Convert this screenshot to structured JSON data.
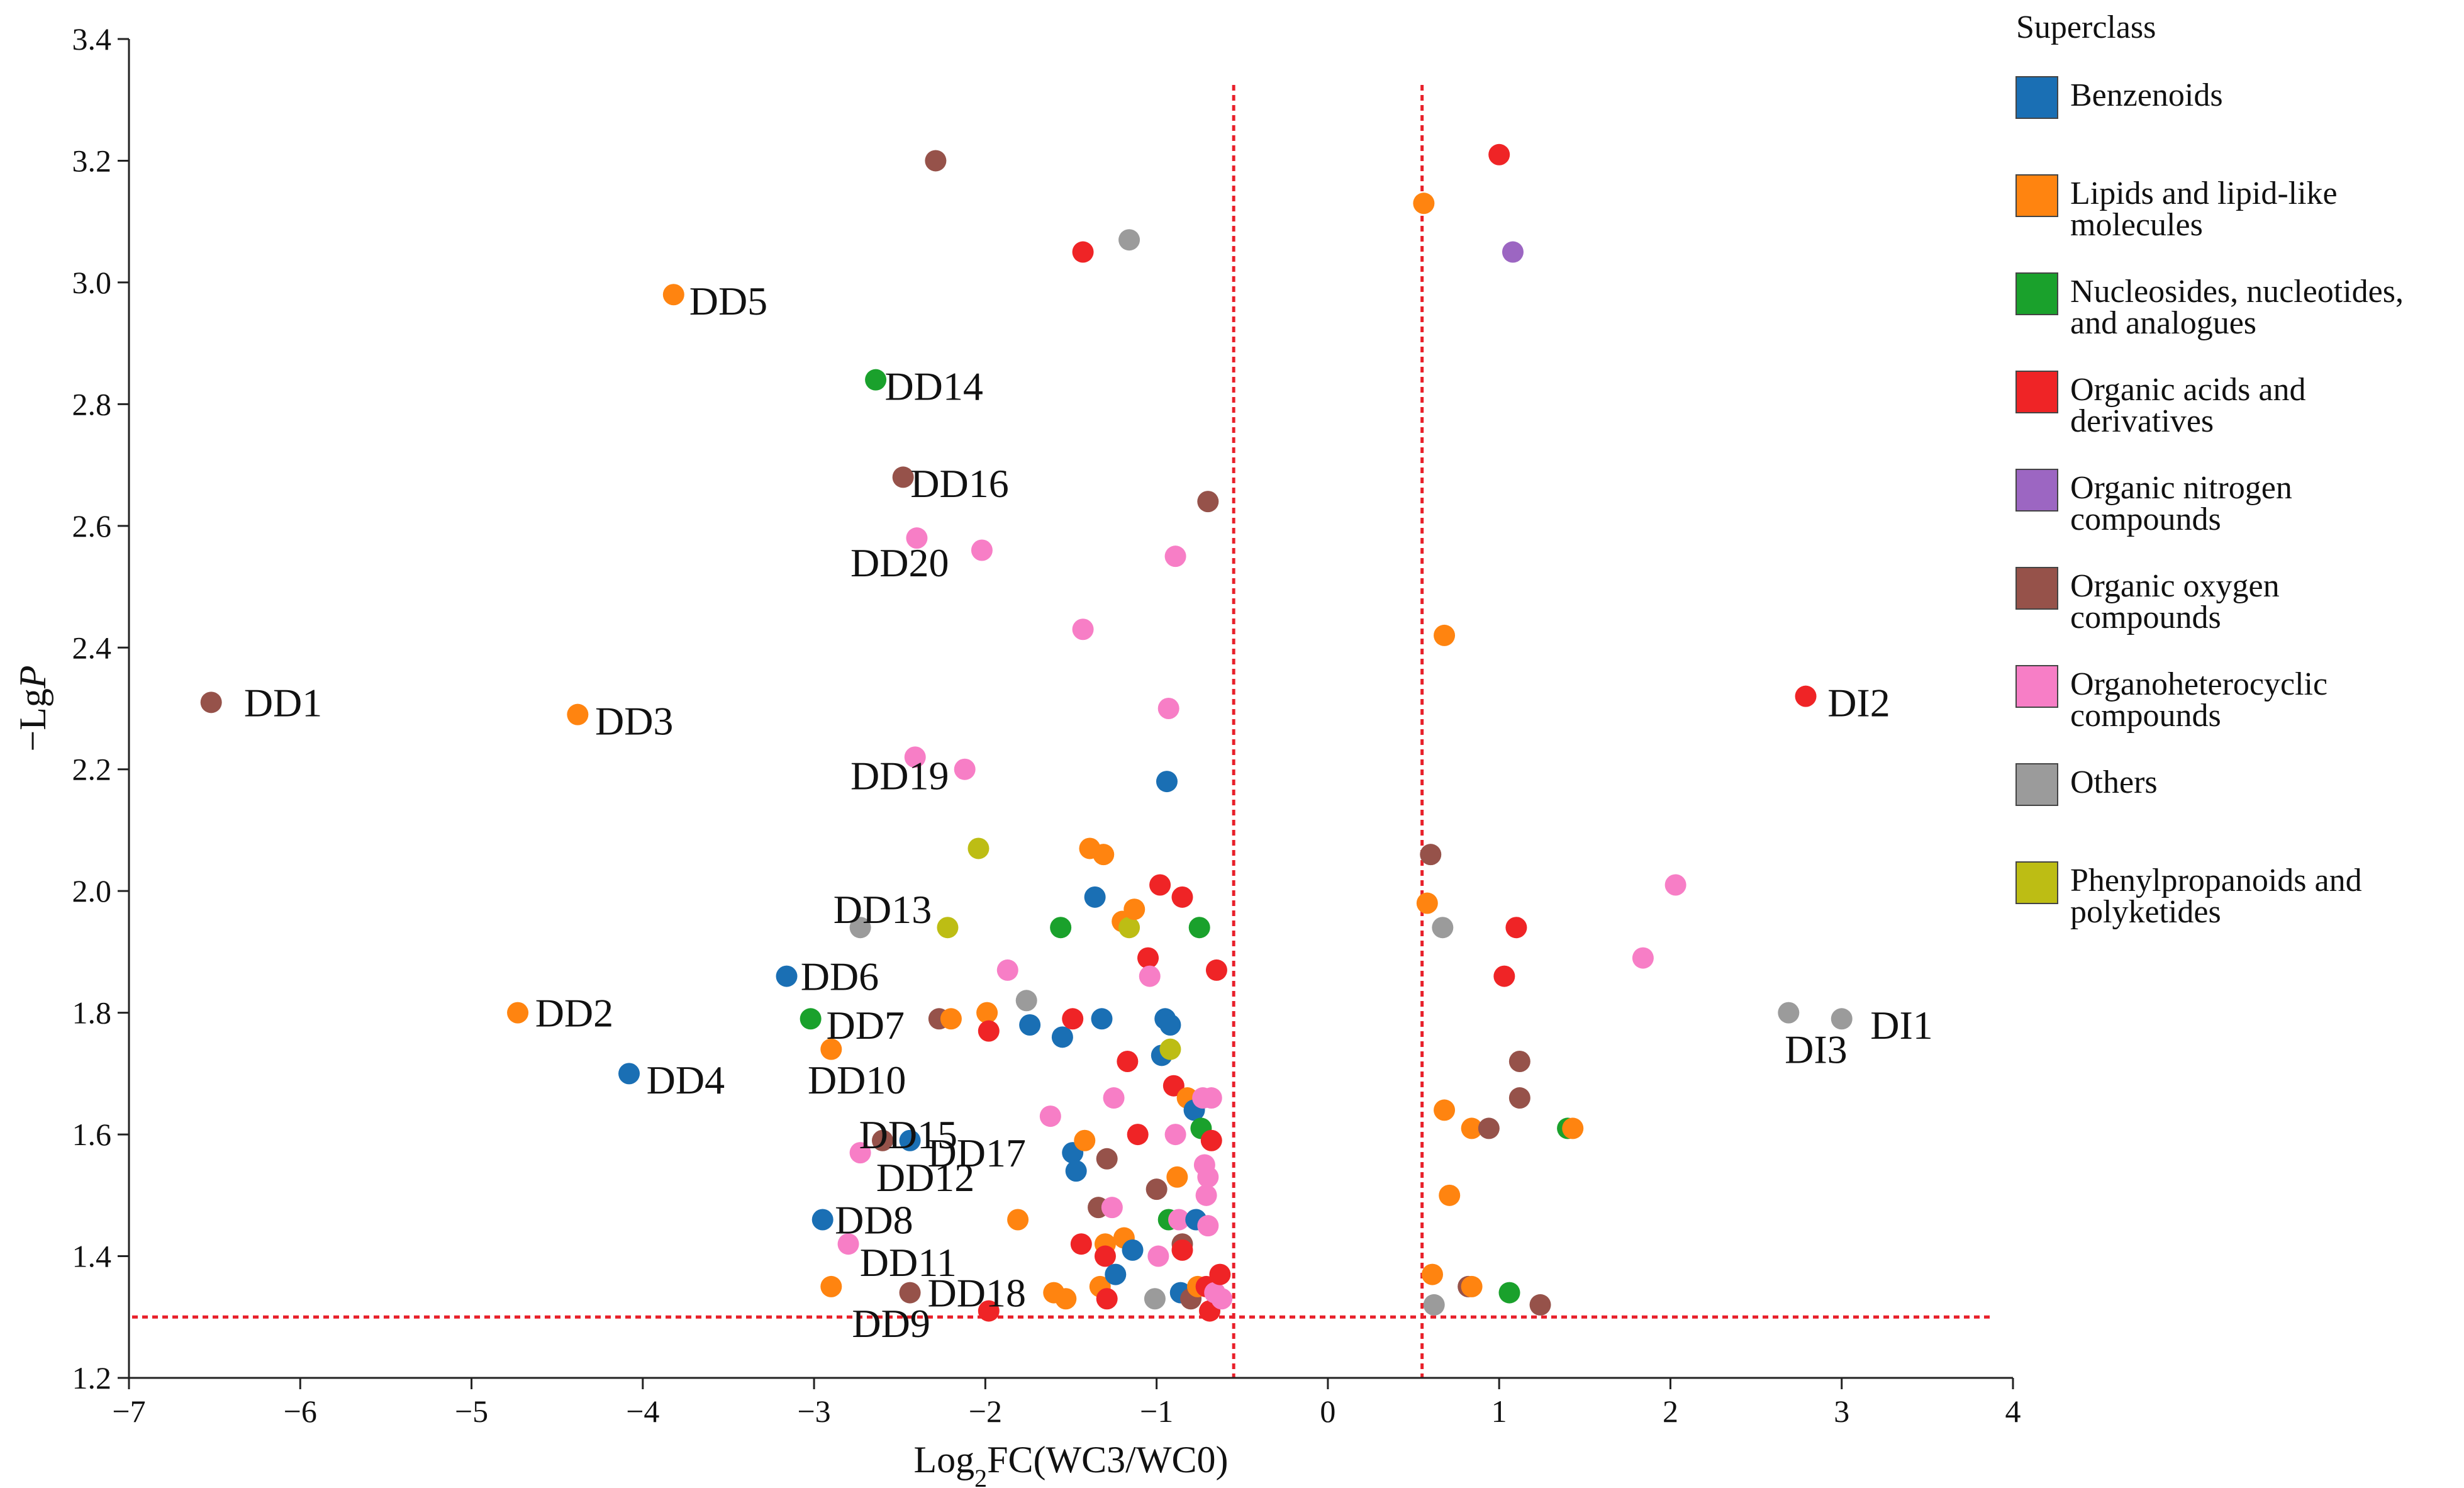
{
  "chart_data": {
    "type": "scatter",
    "title": "",
    "xlabel_prefix": "Log",
    "xlabel_sub": "2",
    "xlabel_suffix": "FC(WC3/WC0)",
    "ylabel_prefix": "−Lg",
    "ylabel_italic": "P",
    "xlim": [
      -7,
      4
    ],
    "ylim": [
      1.2,
      3.4
    ],
    "xticks": [
      -7,
      -6,
      -5,
      -4,
      -3,
      -2,
      -1,
      0,
      1,
      2,
      3,
      4
    ],
    "xtick_labels": [
      "−7",
      "−6",
      "−5",
      "−4",
      "−3",
      "−2",
      "−1",
      "0",
      "1",
      "2",
      "3",
      "4"
    ],
    "yticks": [
      1.2,
      1.4,
      1.6,
      1.8,
      2.0,
      2.2,
      2.4,
      2.6,
      2.8,
      3.0,
      3.2,
      3.4
    ],
    "ytick_labels": [
      "1.2",
      "1.4",
      "1.6",
      "1.8",
      "2.0",
      "2.2",
      "2.4",
      "2.6",
      "2.8",
      "3.0",
      "3.2",
      "3.4"
    ],
    "threshold_lines": {
      "x": [
        -0.55,
        0.55
      ],
      "y": 1.3,
      "color": "#e8202a"
    },
    "legend": {
      "title": "Superclass",
      "position": "right",
      "entries": [
        {
          "key": "benz",
          "lines": [
            "Benzenoids"
          ],
          "color": "#1a6fb4"
        },
        {
          "key": "lip",
          "lines": [
            "Lipids and lipid-like",
            "molecules"
          ],
          "color": "#ff8410"
        },
        {
          "key": "nuc",
          "lines": [
            "Nucleosides, nucleotides,",
            "and analogues"
          ],
          "color": "#1aa12c"
        },
        {
          "key": "oac",
          "lines": [
            "Organic acids and",
            "derivatives"
          ],
          "color": "#ef2426"
        },
        {
          "key": "onc",
          "lines": [
            "Organic nitrogen",
            "compounds"
          ],
          "color": "#9c66c2"
        },
        {
          "key": "ooc",
          "lines": [
            "Organic oxygen",
            "compounds"
          ],
          "color": "#96524a"
        },
        {
          "key": "ohc",
          "lines": [
            "Organoheterocyclic",
            "compounds"
          ],
          "color": "#f77ec6"
        },
        {
          "key": "oth",
          "lines": [
            "Others"
          ],
          "color": "#9b9b9b"
        },
        {
          "key": "php",
          "lines": [
            "Phenylpropanoids and",
            "polyketides"
          ],
          "color": "#bdbd14"
        }
      ]
    },
    "labels": [
      {
        "text": "DD1",
        "x": -6.1,
        "y": 2.31
      },
      {
        "text": "DD2",
        "x": -4.4,
        "y": 1.8
      },
      {
        "text": "DD3",
        "x": -4.05,
        "y": 2.28
      },
      {
        "text": "DD4",
        "x": -3.75,
        "y": 1.69
      },
      {
        "text": "DD5",
        "x": -3.5,
        "y": 2.97
      },
      {
        "text": "DD6",
        "x": -2.85,
        "y": 1.86
      },
      {
        "text": "DD7",
        "x": -2.7,
        "y": 1.78
      },
      {
        "text": "DD8",
        "x": -2.65,
        "y": 1.46
      },
      {
        "text": "DD9",
        "x": -2.55,
        "y": 1.29
      },
      {
        "text": "DD10",
        "x": -2.75,
        "y": 1.69
      },
      {
        "text": "DD11",
        "x": -2.45,
        "y": 1.39
      },
      {
        "text": "DD12",
        "x": -2.35,
        "y": 1.53
      },
      {
        "text": "DD13",
        "x": -2.6,
        "y": 1.97
      },
      {
        "text": "DD14",
        "x": -2.3,
        "y": 2.83
      },
      {
        "text": "DD15",
        "x": -2.45,
        "y": 1.6
      },
      {
        "text": "DD16",
        "x": -2.15,
        "y": 2.67
      },
      {
        "text": "DD17",
        "x": -2.05,
        "y": 1.57
      },
      {
        "text": "DD18",
        "x": -2.05,
        "y": 1.34
      },
      {
        "text": "DD19",
        "x": -2.5,
        "y": 2.19
      },
      {
        "text": "DD20",
        "x": -2.5,
        "y": 2.54
      },
      {
        "text": "DI1",
        "x": 3.35,
        "y": 1.78
      },
      {
        "text": "DI2",
        "x": 3.1,
        "y": 2.31
      },
      {
        "text": "DI3",
        "x": 2.85,
        "y": 1.74
      }
    ],
    "points": [
      {
        "x": -6.52,
        "y": 2.31,
        "c": "ooc"
      },
      {
        "x": -4.73,
        "y": 1.8,
        "c": "lip"
      },
      {
        "x": -4.38,
        "y": 2.29,
        "c": "lip"
      },
      {
        "x": -4.08,
        "y": 1.7,
        "c": "benz"
      },
      {
        "x": -3.82,
        "y": 2.98,
        "c": "lip"
      },
      {
        "x": -3.16,
        "y": 1.86,
        "c": "benz"
      },
      {
        "x": -3.02,
        "y": 1.79,
        "c": "nuc"
      },
      {
        "x": -2.95,
        "y": 1.46,
        "c": "benz"
      },
      {
        "x": -2.9,
        "y": 1.35,
        "c": "lip"
      },
      {
        "x": -2.9,
        "y": 1.74,
        "c": "lip"
      },
      {
        "x": -2.8,
        "y": 1.42,
        "c": "ohc"
      },
      {
        "x": -2.73,
        "y": 1.94,
        "c": "oth"
      },
      {
        "x": -2.73,
        "y": 1.57,
        "c": "ohc"
      },
      {
        "x": -2.64,
        "y": 2.84,
        "c": "nuc"
      },
      {
        "x": -2.6,
        "y": 1.59,
        "c": "ooc"
      },
      {
        "x": -2.48,
        "y": 2.68,
        "c": "ooc"
      },
      {
        "x": -2.44,
        "y": 1.59,
        "c": "benz"
      },
      {
        "x": -2.44,
        "y": 1.34,
        "c": "ooc"
      },
      {
        "x": -2.41,
        "y": 2.22,
        "c": "ohc"
      },
      {
        "x": -2.4,
        "y": 2.58,
        "c": "ohc"
      },
      {
        "x": -2.29,
        "y": 3.2,
        "c": "ooc"
      },
      {
        "x": -2.27,
        "y": 1.79,
        "c": "ooc"
      },
      {
        "x": -2.22,
        "y": 1.94,
        "c": "php"
      },
      {
        "x": -2.2,
        "y": 1.79,
        "c": "lip"
      },
      {
        "x": -2.12,
        "y": 2.2,
        "c": "ohc"
      },
      {
        "x": -2.04,
        "y": 2.07,
        "c": "php"
      },
      {
        "x": -2.02,
        "y": 2.56,
        "c": "ohc"
      },
      {
        "x": -1.99,
        "y": 1.8,
        "c": "lip"
      },
      {
        "x": -1.98,
        "y": 1.77,
        "c": "oac"
      },
      {
        "x": -1.98,
        "y": 1.31,
        "c": "oac"
      },
      {
        "x": -1.87,
        "y": 1.87,
        "c": "ohc"
      },
      {
        "x": -1.81,
        "y": 1.46,
        "c": "lip"
      },
      {
        "x": -1.76,
        "y": 1.82,
        "c": "oth"
      },
      {
        "x": -1.74,
        "y": 1.78,
        "c": "benz"
      },
      {
        "x": -1.62,
        "y": 1.63,
        "c": "ohc"
      },
      {
        "x": -1.6,
        "y": 1.34,
        "c": "lip"
      },
      {
        "x": -1.56,
        "y": 1.94,
        "c": "nuc"
      },
      {
        "x": -1.55,
        "y": 1.76,
        "c": "benz"
      },
      {
        "x": -1.53,
        "y": 1.33,
        "c": "lip"
      },
      {
        "x": -1.49,
        "y": 1.79,
        "c": "oac"
      },
      {
        "x": -1.49,
        "y": 1.57,
        "c": "benz"
      },
      {
        "x": -1.47,
        "y": 1.54,
        "c": "benz"
      },
      {
        "x": -1.44,
        "y": 1.42,
        "c": "oac"
      },
      {
        "x": -1.43,
        "y": 3.05,
        "c": "oac"
      },
      {
        "x": -1.43,
        "y": 2.43,
        "c": "ohc"
      },
      {
        "x": -1.42,
        "y": 1.59,
        "c": "lip"
      },
      {
        "x": -1.39,
        "y": 2.07,
        "c": "lip"
      },
      {
        "x": -1.36,
        "y": 1.99,
        "c": "benz"
      },
      {
        "x": -1.34,
        "y": 1.48,
        "c": "ooc"
      },
      {
        "x": -1.33,
        "y": 1.35,
        "c": "lip"
      },
      {
        "x": -1.32,
        "y": 1.79,
        "c": "benz"
      },
      {
        "x": -1.31,
        "y": 2.06,
        "c": "lip"
      },
      {
        "x": -1.3,
        "y": 1.42,
        "c": "lip"
      },
      {
        "x": -1.3,
        "y": 1.4,
        "c": "oac"
      },
      {
        "x": -1.29,
        "y": 1.56,
        "c": "ooc"
      },
      {
        "x": -1.29,
        "y": 1.33,
        "c": "oac"
      },
      {
        "x": -1.26,
        "y": 1.48,
        "c": "ohc"
      },
      {
        "x": -1.25,
        "y": 1.66,
        "c": "ohc"
      },
      {
        "x": -1.24,
        "y": 1.37,
        "c": "benz"
      },
      {
        "x": -1.2,
        "y": 1.95,
        "c": "lip"
      },
      {
        "x": -1.19,
        "y": 1.43,
        "c": "lip"
      },
      {
        "x": -1.17,
        "y": 1.72,
        "c": "oac"
      },
      {
        "x": -1.16,
        "y": 1.94,
        "c": "php"
      },
      {
        "x": -1.16,
        "y": 3.07,
        "c": "oth"
      },
      {
        "x": -1.14,
        "y": 1.41,
        "c": "benz"
      },
      {
        "x": -1.13,
        "y": 1.97,
        "c": "lip"
      },
      {
        "x": -1.11,
        "y": 1.6,
        "c": "oac"
      },
      {
        "x": -1.05,
        "y": 1.89,
        "c": "oac"
      },
      {
        "x": -1.04,
        "y": 1.86,
        "c": "ohc"
      },
      {
        "x": -1.01,
        "y": 1.33,
        "c": "oth"
      },
      {
        "x": -1.0,
        "y": 1.51,
        "c": "ooc"
      },
      {
        "x": -0.99,
        "y": 1.4,
        "c": "ohc"
      },
      {
        "x": -0.98,
        "y": 2.01,
        "c": "oac"
      },
      {
        "x": -0.97,
        "y": 1.73,
        "c": "benz"
      },
      {
        "x": -0.95,
        "y": 1.79,
        "c": "benz"
      },
      {
        "x": -0.94,
        "y": 2.18,
        "c": "benz"
      },
      {
        "x": -0.93,
        "y": 2.3,
        "c": "ohc"
      },
      {
        "x": -0.93,
        "y": 1.46,
        "c": "nuc"
      },
      {
        "x": -0.92,
        "y": 1.74,
        "c": "php"
      },
      {
        "x": -0.92,
        "y": 1.78,
        "c": "benz"
      },
      {
        "x": -0.9,
        "y": 1.68,
        "c": "oac"
      },
      {
        "x": -0.89,
        "y": 1.6,
        "c": "ohc"
      },
      {
        "x": -0.89,
        "y": 2.55,
        "c": "ohc"
      },
      {
        "x": -0.88,
        "y": 1.53,
        "c": "lip"
      },
      {
        "x": -0.87,
        "y": 1.46,
        "c": "ohc"
      },
      {
        "x": -0.86,
        "y": 1.34,
        "c": "benz"
      },
      {
        "x": -0.85,
        "y": 1.99,
        "c": "oac"
      },
      {
        "x": -0.85,
        "y": 1.42,
        "c": "ooc"
      },
      {
        "x": -0.85,
        "y": 1.41,
        "c": "oac"
      },
      {
        "x": -0.82,
        "y": 1.66,
        "c": "lip"
      },
      {
        "x": -0.8,
        "y": 1.33,
        "c": "ooc"
      },
      {
        "x": -0.78,
        "y": 1.64,
        "c": "benz"
      },
      {
        "x": -0.77,
        "y": 1.46,
        "c": "benz"
      },
      {
        "x": -0.76,
        "y": 1.35,
        "c": "lip"
      },
      {
        "x": -0.75,
        "y": 1.94,
        "c": "nuc"
      },
      {
        "x": -0.74,
        "y": 1.61,
        "c": "nuc"
      },
      {
        "x": -0.73,
        "y": 1.66,
        "c": "ohc"
      },
      {
        "x": -0.72,
        "y": 1.55,
        "c": "ohc"
      },
      {
        "x": -0.71,
        "y": 1.5,
        "c": "ohc"
      },
      {
        "x": -0.71,
        "y": 1.35,
        "c": "oac"
      },
      {
        "x": -0.7,
        "y": 2.64,
        "c": "ooc"
      },
      {
        "x": -0.7,
        "y": 1.53,
        "c": "ohc"
      },
      {
        "x": -0.7,
        "y": 1.45,
        "c": "ohc"
      },
      {
        "x": -0.69,
        "y": 1.31,
        "c": "oac"
      },
      {
        "x": -0.68,
        "y": 1.59,
        "c": "oac"
      },
      {
        "x": -0.68,
        "y": 1.66,
        "c": "ohc"
      },
      {
        "x": -0.66,
        "y": 1.34,
        "c": "ohc"
      },
      {
        "x": -0.65,
        "y": 1.87,
        "c": "oac"
      },
      {
        "x": -0.63,
        "y": 1.37,
        "c": "oac"
      },
      {
        "x": -0.62,
        "y": 1.33,
        "c": "ohc"
      },
      {
        "x": 0.56,
        "y": 3.13,
        "c": "lip"
      },
      {
        "x": 0.58,
        "y": 1.98,
        "c": "lip"
      },
      {
        "x": 0.6,
        "y": 2.06,
        "c": "ooc"
      },
      {
        "x": 0.61,
        "y": 1.37,
        "c": "lip"
      },
      {
        "x": 0.62,
        "y": 1.32,
        "c": "oth"
      },
      {
        "x": 0.67,
        "y": 1.94,
        "c": "oth"
      },
      {
        "x": 0.68,
        "y": 1.64,
        "c": "lip"
      },
      {
        "x": 0.68,
        "y": 2.42,
        "c": "lip"
      },
      {
        "x": 0.71,
        "y": 1.5,
        "c": "lip"
      },
      {
        "x": 0.82,
        "y": 1.35,
        "c": "ooc"
      },
      {
        "x": 0.84,
        "y": 1.35,
        "c": "lip"
      },
      {
        "x": 0.84,
        "y": 1.61,
        "c": "lip"
      },
      {
        "x": 0.94,
        "y": 1.61,
        "c": "ooc"
      },
      {
        "x": 1.0,
        "y": 3.21,
        "c": "oac"
      },
      {
        "x": 1.03,
        "y": 1.86,
        "c": "oac"
      },
      {
        "x": 1.06,
        "y": 1.34,
        "c": "nuc"
      },
      {
        "x": 1.08,
        "y": 3.05,
        "c": "onc"
      },
      {
        "x": 1.1,
        "y": 1.94,
        "c": "oac"
      },
      {
        "x": 1.12,
        "y": 1.72,
        "c": "ooc"
      },
      {
        "x": 1.12,
        "y": 1.66,
        "c": "ooc"
      },
      {
        "x": 1.24,
        "y": 1.32,
        "c": "ooc"
      },
      {
        "x": 1.4,
        "y": 1.61,
        "c": "nuc"
      },
      {
        "x": 1.43,
        "y": 1.61,
        "c": "lip"
      },
      {
        "x": 1.84,
        "y": 1.89,
        "c": "ohc"
      },
      {
        "x": 2.03,
        "y": 2.01,
        "c": "ohc"
      },
      {
        "x": 2.69,
        "y": 1.8,
        "c": "oth"
      },
      {
        "x": 2.79,
        "y": 2.32,
        "c": "oac"
      },
      {
        "x": 3.0,
        "y": 1.79,
        "c": "oth"
      }
    ]
  }
}
